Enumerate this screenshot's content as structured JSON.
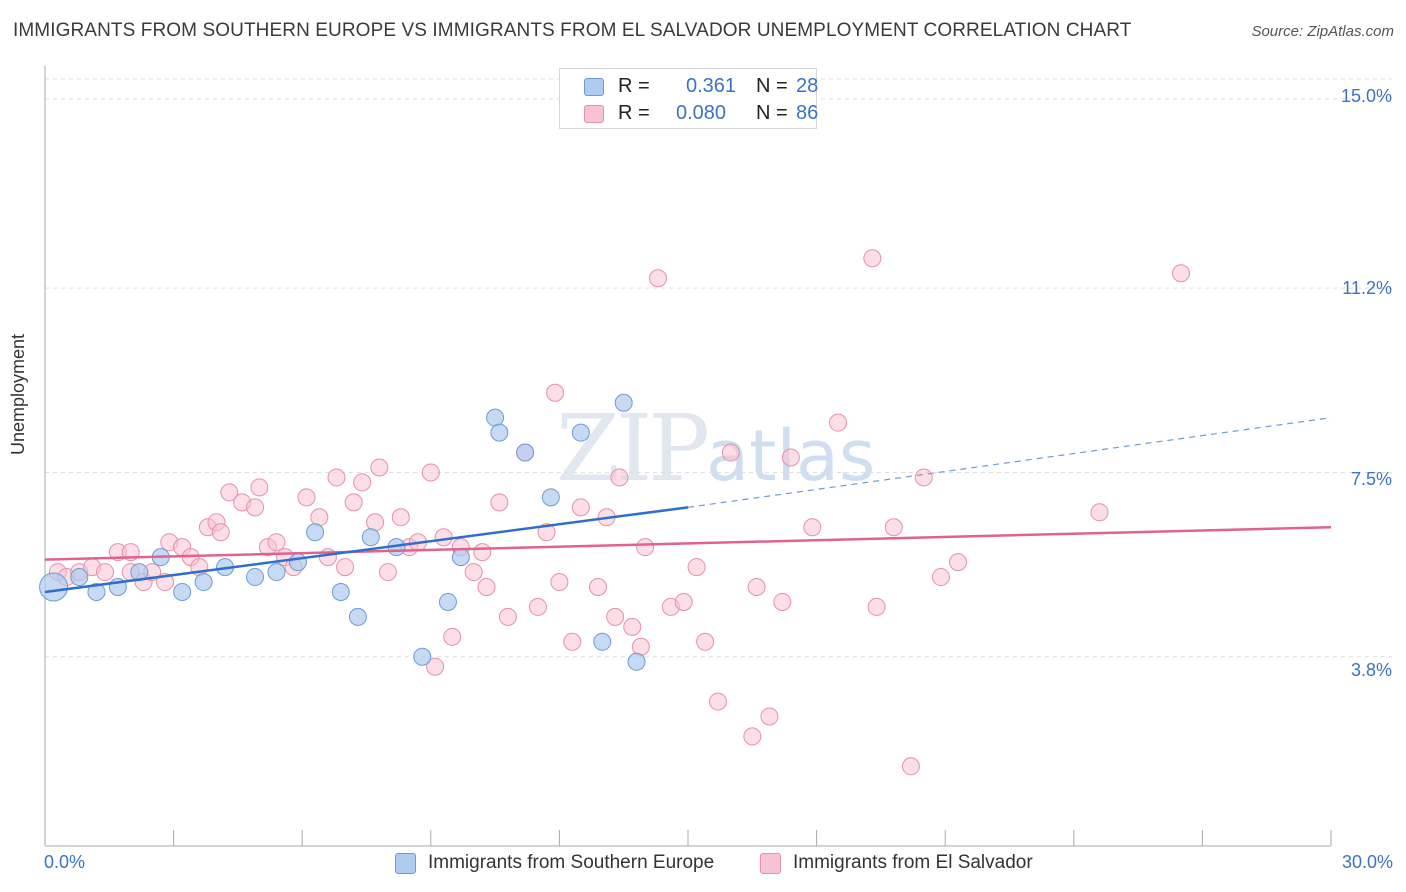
{
  "title": "IMMIGRANTS FROM SOUTHERN EUROPE VS IMMIGRANTS FROM EL SALVADOR UNEMPLOYMENT CORRELATION CHART",
  "source": "Source: ZipAtlas.com",
  "watermark": {
    "zip": "ZIP",
    "atlas": "atlas"
  },
  "legend": {
    "rows": [
      {
        "r_label": "R =",
        "r_value": "0.361",
        "n_label": "N =",
        "n_value": "28"
      },
      {
        "r_label": "R =",
        "r_value": "0.080",
        "n_label": "N =",
        "n_value": "86"
      }
    ]
  },
  "colors": {
    "blue_fill": "#aecbf0",
    "blue_stroke": "#6f9ad6",
    "blue_line": "#2f6ecb",
    "pink_fill": "#f7c3d2",
    "pink_stroke": "#e78fab",
    "pink_line": "#e0628e",
    "tick_text": "#3b73c4",
    "grid": "#dddddd"
  },
  "chart_data": {
    "type": "scatter",
    "title": "IMMIGRANTS FROM SOUTHERN EUROPE VS IMMIGRANTS FROM EL SALVADOR UNEMPLOYMENT CORRELATION CHART",
    "xlabel": "",
    "ylabel": "Unemployment",
    "xlim": [
      0,
      30
    ],
    "ylim": [
      0,
      15.4
    ],
    "x_tick_labels": [
      "0.0%",
      "30.0%"
    ],
    "y_ticks": [
      {
        "value": 3.8,
        "label": "3.8%"
      },
      {
        "value": 7.5,
        "label": "7.5%"
      },
      {
        "value": 11.2,
        "label": "11.2%"
      },
      {
        "value": 15.0,
        "label": "15.0%"
      }
    ],
    "grid": true,
    "legend_position": "bottom-center",
    "series": [
      {
        "name": "Immigrants from Southern Europe",
        "color": "#aecbf0",
        "points": [
          [
            0.2,
            5.2
          ],
          [
            0.8,
            5.4
          ],
          [
            1.2,
            5.1
          ],
          [
            1.7,
            5.2
          ],
          [
            2.2,
            5.5
          ],
          [
            2.7,
            5.8
          ],
          [
            3.2,
            5.1
          ],
          [
            3.7,
            5.3
          ],
          [
            4.2,
            5.6
          ],
          [
            4.9,
            5.4
          ],
          [
            5.4,
            5.5
          ],
          [
            5.9,
            5.7
          ],
          [
            6.3,
            6.3
          ],
          [
            6.9,
            5.1
          ],
          [
            7.3,
            4.6
          ],
          [
            7.6,
            6.2
          ],
          [
            8.2,
            6.0
          ],
          [
            8.8,
            3.8
          ],
          [
            9.4,
            4.9
          ],
          [
            9.7,
            5.8
          ],
          [
            10.5,
            8.6
          ],
          [
            10.6,
            8.3
          ],
          [
            11.2,
            7.9
          ],
          [
            11.8,
            7.0
          ],
          [
            12.5,
            8.3
          ],
          [
            13.0,
            4.1
          ],
          [
            13.5,
            8.9
          ],
          [
            13.8,
            3.7
          ]
        ],
        "trend": {
          "x0": 0,
          "y0": 5.1,
          "x1": 15,
          "y1": 6.8,
          "dash_to_x": 30,
          "dash_to_y": 8.6
        }
      },
      {
        "name": "Immigrants from El Salvador",
        "color": "#f7c3d2",
        "points": [
          [
            0.3,
            5.5
          ],
          [
            0.5,
            5.4
          ],
          [
            0.8,
            5.5
          ],
          [
            1.1,
            5.6
          ],
          [
            1.4,
            5.5
          ],
          [
            1.7,
            5.9
          ],
          [
            2.0,
            5.5
          ],
          [
            2.0,
            5.9
          ],
          [
            2.3,
            5.3
          ],
          [
            2.5,
            5.5
          ],
          [
            2.8,
            5.3
          ],
          [
            2.9,
            6.1
          ],
          [
            3.2,
            6.0
          ],
          [
            3.4,
            5.8
          ],
          [
            3.6,
            5.6
          ],
          [
            3.8,
            6.4
          ],
          [
            4.0,
            6.5
          ],
          [
            4.1,
            6.3
          ],
          [
            4.3,
            7.1
          ],
          [
            4.6,
            6.9
          ],
          [
            4.9,
            6.8
          ],
          [
            5.0,
            7.2
          ],
          [
            5.2,
            6.0
          ],
          [
            5.4,
            6.1
          ],
          [
            5.6,
            5.8
          ],
          [
            5.8,
            5.6
          ],
          [
            6.1,
            7.0
          ],
          [
            6.4,
            6.6
          ],
          [
            6.6,
            5.8
          ],
          [
            6.8,
            7.4
          ],
          [
            7.0,
            5.6
          ],
          [
            7.2,
            6.9
          ],
          [
            7.4,
            7.3
          ],
          [
            7.7,
            6.5
          ],
          [
            7.8,
            7.6
          ],
          [
            8.0,
            5.5
          ],
          [
            8.3,
            6.6
          ],
          [
            8.5,
            6.0
          ],
          [
            8.7,
            6.1
          ],
          [
            9.0,
            7.5
          ],
          [
            9.1,
            3.6
          ],
          [
            9.3,
            6.2
          ],
          [
            9.5,
            4.2
          ],
          [
            9.7,
            6.0
          ],
          [
            10.0,
            5.5
          ],
          [
            10.2,
            5.9
          ],
          [
            10.3,
            5.2
          ],
          [
            10.6,
            6.9
          ],
          [
            10.8,
            4.6
          ],
          [
            11.2,
            7.9
          ],
          [
            11.5,
            4.8
          ],
          [
            11.7,
            6.3
          ],
          [
            11.9,
            9.1
          ],
          [
            12.0,
            5.3
          ],
          [
            12.3,
            4.1
          ],
          [
            12.9,
            5.2
          ],
          [
            13.1,
            6.6
          ],
          [
            13.3,
            4.6
          ],
          [
            13.4,
            7.4
          ],
          [
            13.7,
            4.4
          ],
          [
            13.9,
            4.0
          ],
          [
            14.3,
            11.4
          ],
          [
            14.6,
            4.8
          ],
          [
            14.9,
            4.9
          ],
          [
            15.2,
            5.6
          ],
          [
            15.4,
            4.1
          ],
          [
            15.7,
            2.9
          ],
          [
            16.0,
            7.9
          ],
          [
            16.5,
            2.2
          ],
          [
            16.6,
            5.2
          ],
          [
            16.9,
            2.6
          ],
          [
            17.2,
            4.9
          ],
          [
            17.4,
            7.8
          ],
          [
            17.9,
            6.4
          ],
          [
            18.5,
            8.5
          ],
          [
            19.3,
            11.8
          ],
          [
            19.4,
            4.8
          ],
          [
            19.8,
            6.4
          ],
          [
            20.2,
            1.6
          ],
          [
            20.5,
            7.4
          ],
          [
            20.9,
            5.4
          ],
          [
            21.3,
            5.7
          ],
          [
            26.5,
            11.5
          ],
          [
            24.6,
            6.7
          ],
          [
            14.0,
            6.0
          ],
          [
            12.5,
            6.8
          ]
        ],
        "trend": {
          "x0": 0,
          "y0": 5.75,
          "x1": 30,
          "y1": 6.4
        }
      }
    ]
  }
}
